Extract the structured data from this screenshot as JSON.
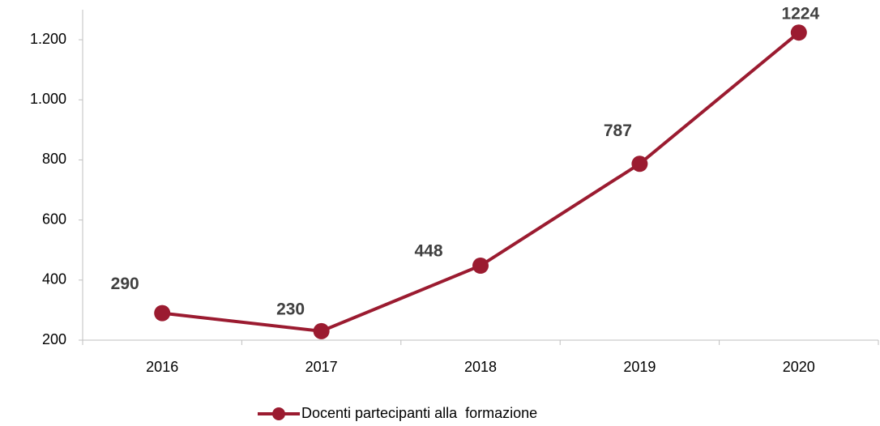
{
  "chart_data": {
    "type": "line",
    "categories": [
      "2016",
      "2017",
      "2018",
      "2019",
      "2020"
    ],
    "series": [
      {
        "name": "Docenti partecipanti alla  formazione",
        "color": "#9b1b30",
        "values": [
          290,
          230,
          448,
          787,
          1224
        ]
      }
    ],
    "ylim": [
      200,
      1300
    ],
    "yticks": [
      200,
      400,
      600,
      800,
      {
        "value": 1000,
        "label": "1.000"
      },
      {
        "value": 1200,
        "label": "1.200"
      }
    ],
    "grid": false,
    "legend": "bottom"
  }
}
